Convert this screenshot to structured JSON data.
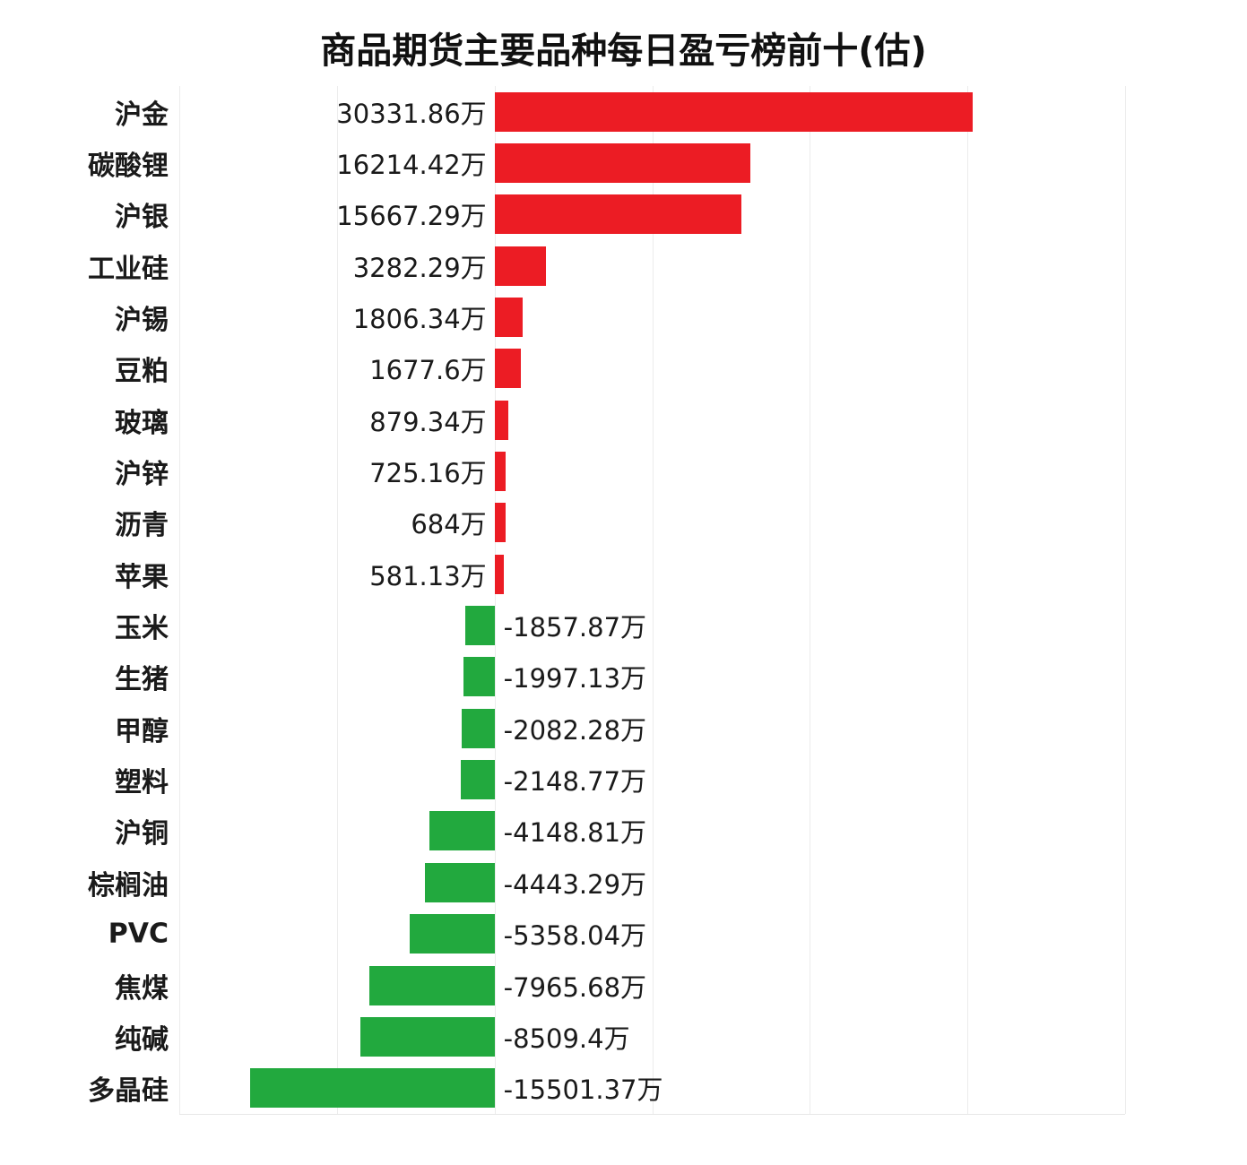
{
  "title": "商品期货主要品种每日盈亏榜前十(估)",
  "colors": {
    "positive_bar": "#ec1c24",
    "negative_bar": "#22a93e",
    "gridline": "#ececec",
    "text": "#1a1a1a"
  },
  "chart_data": {
    "type": "bar",
    "orientation": "horizontal",
    "title": "商品期货主要品种每日盈亏榜前十(估)",
    "unit": "万",
    "categories": [
      "沪金",
      "碳酸锂",
      "沪银",
      "工业硅",
      "沪锡",
      "豆粕",
      "玻璃",
      "沪锌",
      "沥青",
      "苹果",
      "玉米",
      "生猪",
      "甲醇",
      "塑料",
      "沪铜",
      "棕榈油",
      "PVC",
      "焦煤",
      "纯碱",
      "多晶硅"
    ],
    "values": [
      30331.86,
      16214.42,
      15667.29,
      3282.29,
      1806.34,
      1677.6,
      879.34,
      725.16,
      684,
      581.13,
      -1857.87,
      -1997.13,
      -2082.28,
      -2148.77,
      -4148.81,
      -4443.29,
      -5358.04,
      -7965.68,
      -8509.4,
      -15501.37
    ],
    "value_labels": [
      "30331.86万",
      "16214.42万",
      "15667.29万",
      "3282.29万",
      "1806.34万",
      "1677.6万",
      "879.34万",
      "725.16万",
      "684万",
      "581.13万",
      "-1857.87万",
      "-1997.13万",
      "-2082.28万",
      "-2148.77万",
      "-4148.81万",
      "-4443.29万",
      "-5358.04万",
      "-7965.68万",
      "-8509.4万",
      "-15501.37万"
    ],
    "xlim": [
      -20000,
      40000
    ],
    "grid_interval": 10000,
    "grid": true,
    "legend": false,
    "xlabel": "",
    "ylabel": ""
  }
}
